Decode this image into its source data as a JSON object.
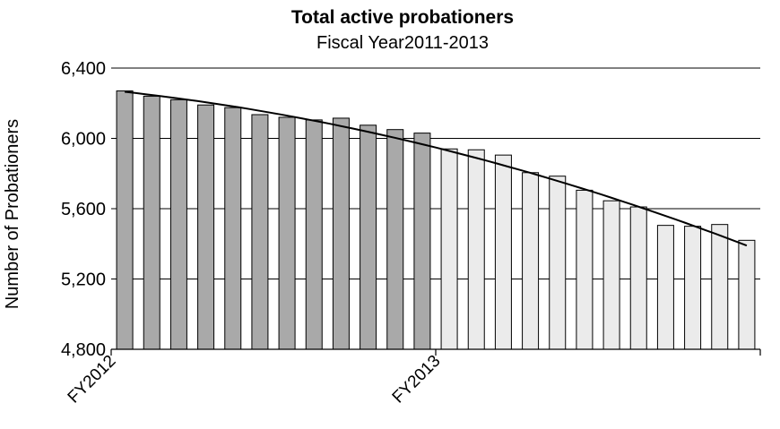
{
  "chart_data": {
    "type": "bar",
    "title": "Total active probationers",
    "subtitle": "Fiscal Year2011-2013",
    "ylabel": "Number of Probationers",
    "xlabel": "",
    "ylim": [
      4800,
      6400
    ],
    "yticks": [
      4800,
      5200,
      5600,
      6000,
      6400
    ],
    "ytick_labels": [
      "4,800",
      "5,200",
      "5,600",
      "6,000",
      "6,400"
    ],
    "grid": true,
    "legend": "none",
    "x_tick_labels": [
      {
        "label": "FY2012",
        "position": 0
      },
      {
        "label": "FY2013",
        "position": 12
      }
    ],
    "colors": {
      "fy2012": "#a9a9a9",
      "fy2013": "#ebebeb"
    },
    "series": [
      {
        "values": [
          6270,
          6240,
          6220,
          6190,
          6175,
          6135,
          6120,
          6105,
          6115,
          6075,
          6050,
          6030
        ]
      },
      {
        "values": [
          5940,
          5935,
          5905,
          5805,
          5785,
          5705,
          5645,
          5610,
          5505,
          5500,
          5510,
          5420
        ]
      }
    ],
    "trendline": {
      "type": "polynomial",
      "start": 6265,
      "end": 5390
    }
  }
}
